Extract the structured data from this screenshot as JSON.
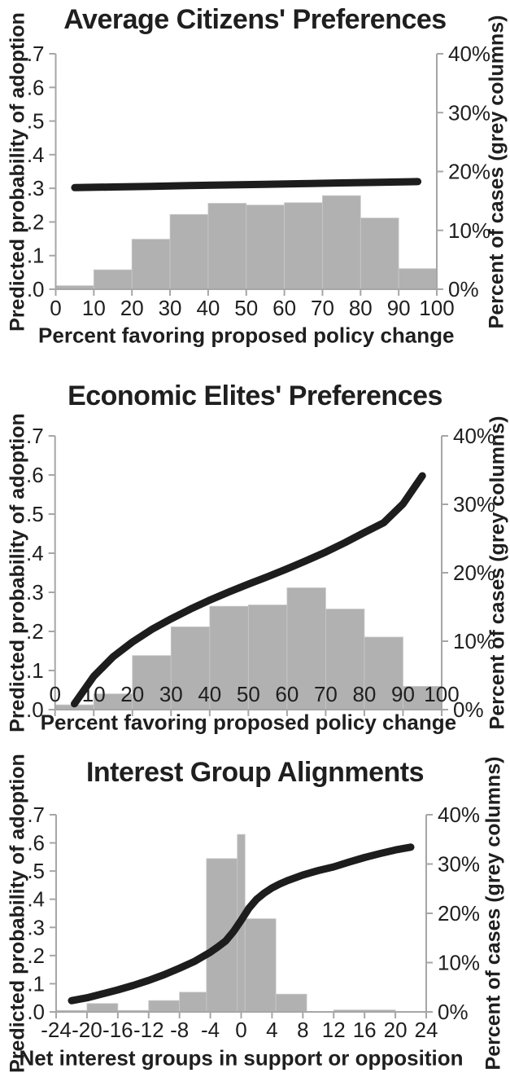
{
  "colors": {
    "bar_fill": "#b1b1b1",
    "bar_edge": "#c9c9c9",
    "line": "#1d1d1d",
    "axis": "#a6a6a6",
    "text": "#1f1f1f",
    "background": "#ffffff"
  },
  "chart_data": [
    {
      "type": "bar+line",
      "title": "Average Citizens' Preferences",
      "x_label": "Percent favoring proposed policy change",
      "y_left_label": "Predicted probability of adoption",
      "y_right_label": "Percent of cases (grey columns)",
      "x_range": [
        0,
        100
      ],
      "y_left_range": [
        0,
        0.7
      ],
      "y_right_range": [
        0,
        40
      ],
      "grid": false,
      "legend": false,
      "x_ticks": [
        {
          "v": 0,
          "label": "0"
        },
        {
          "v": 10,
          "label": "10"
        },
        {
          "v": 20,
          "label": "20"
        },
        {
          "v": 30,
          "label": "30"
        },
        {
          "v": 40,
          "label": "40"
        },
        {
          "v": 50,
          "label": "50"
        },
        {
          "v": 60,
          "label": "60"
        },
        {
          "v": 70,
          "label": "70"
        },
        {
          "v": 80,
          "label": "80"
        },
        {
          "v": 90,
          "label": "90"
        },
        {
          "v": 100,
          "label": "100"
        }
      ],
      "y_left_ticks": [
        {
          "v": 0.0,
          "label": ".0"
        },
        {
          "v": 0.1,
          "label": ".1"
        },
        {
          "v": 0.2,
          "label": ".2"
        },
        {
          "v": 0.3,
          "label": ".3"
        },
        {
          "v": 0.4,
          "label": ".4"
        },
        {
          "v": 0.5,
          "label": ".5"
        },
        {
          "v": 0.6,
          "label": ".6"
        },
        {
          "v": 0.7,
          "label": ".7"
        }
      ],
      "y_right_ticks": [
        {
          "v": 0,
          "label": "0%"
        },
        {
          "v": 10,
          "label": "10%"
        },
        {
          "v": 20,
          "label": "20%"
        },
        {
          "v": 30,
          "label": "30%"
        },
        {
          "v": 40,
          "label": "40%"
        }
      ],
      "bars_unit": "percent_of_cases_right_axis",
      "bars": [
        {
          "from": 0,
          "to": 10,
          "value": 0.6
        },
        {
          "from": 10,
          "to": 20,
          "value": 3.3
        },
        {
          "from": 20,
          "to": 30,
          "value": 8.5
        },
        {
          "from": 30,
          "to": 40,
          "value": 12.7
        },
        {
          "from": 40,
          "to": 50,
          "value": 14.6
        },
        {
          "from": 50,
          "to": 60,
          "value": 14.3
        },
        {
          "from": 60,
          "to": 70,
          "value": 14.7
        },
        {
          "from": 70,
          "to": 80,
          "value": 15.9
        },
        {
          "from": 80,
          "to": 90,
          "value": 12.1
        },
        {
          "from": 90,
          "to": 100,
          "value": 3.5
        }
      ],
      "line_unit": "predicted_probability_left_axis",
      "line": [
        [
          5,
          0.302
        ],
        [
          15,
          0.304
        ],
        [
          25,
          0.306
        ],
        [
          35,
          0.308
        ],
        [
          45,
          0.31
        ],
        [
          55,
          0.312
        ],
        [
          65,
          0.314
        ],
        [
          75,
          0.316
        ],
        [
          85,
          0.318
        ],
        [
          95,
          0.32
        ]
      ]
    },
    {
      "type": "bar+line",
      "title": "Economic Elites' Preferences",
      "x_label": "Percent favoring proposed policy change",
      "y_left_label": "Predicted probability of adoption",
      "y_right_label": "Percent of cases (grey columns)",
      "x_range": [
        0,
        100
      ],
      "y_left_range": [
        0,
        0.7
      ],
      "y_right_range": [
        0,
        40
      ],
      "grid": false,
      "legend": false,
      "x_ticks": [
        {
          "v": 0,
          "label": "0"
        },
        {
          "v": 10,
          "label": "10"
        },
        {
          "v": 20,
          "label": "20"
        },
        {
          "v": 30,
          "label": "30"
        },
        {
          "v": 40,
          "label": "40"
        },
        {
          "v": 50,
          "label": "50"
        },
        {
          "v": 60,
          "label": "60"
        },
        {
          "v": 70,
          "label": "70"
        },
        {
          "v": 80,
          "label": "80"
        },
        {
          "v": 90,
          "label": "90"
        },
        {
          "v": 100,
          "label": "100"
        }
      ],
      "y_left_ticks": [
        {
          "v": 0.0,
          "label": ".0"
        },
        {
          "v": 0.1,
          "label": ".1"
        },
        {
          "v": 0.2,
          "label": ".2"
        },
        {
          "v": 0.3,
          "label": ".3"
        },
        {
          "v": 0.4,
          "label": ".4"
        },
        {
          "v": 0.5,
          "label": ".5"
        },
        {
          "v": 0.6,
          "label": ".6"
        },
        {
          "v": 0.7,
          "label": ".7"
        }
      ],
      "y_right_ticks": [
        {
          "v": 0,
          "label": "0%"
        },
        {
          "v": 10,
          "label": "10%"
        },
        {
          "v": 20,
          "label": "20%"
        },
        {
          "v": 30,
          "label": "30%"
        },
        {
          "v": 40,
          "label": "40%"
        }
      ],
      "bars_unit": "percent_of_cases_right_axis",
      "bars": [
        {
          "from": 0,
          "to": 10,
          "value": 0.7
        },
        {
          "from": 10,
          "to": 20,
          "value": 2.3
        },
        {
          "from": 20,
          "to": 30,
          "value": 7.9
        },
        {
          "from": 30,
          "to": 40,
          "value": 12.1
        },
        {
          "from": 40,
          "to": 50,
          "value": 15.1
        },
        {
          "from": 50,
          "to": 60,
          "value": 15.3
        },
        {
          "from": 60,
          "to": 70,
          "value": 17.8
        },
        {
          "from": 70,
          "to": 80,
          "value": 14.7
        },
        {
          "from": 80,
          "to": 90,
          "value": 10.6
        },
        {
          "from": 90,
          "to": 100,
          "value": 3.4
        }
      ],
      "line_unit": "predicted_probability_left_axis",
      "line": [
        [
          5,
          0.015
        ],
        [
          10,
          0.085
        ],
        [
          15,
          0.135
        ],
        [
          20,
          0.173
        ],
        [
          25,
          0.205
        ],
        [
          30,
          0.232
        ],
        [
          35,
          0.257
        ],
        [
          40,
          0.28
        ],
        [
          45,
          0.301
        ],
        [
          50,
          0.321
        ],
        [
          55,
          0.34
        ],
        [
          60,
          0.36
        ],
        [
          65,
          0.381
        ],
        [
          70,
          0.403
        ],
        [
          75,
          0.427
        ],
        [
          80,
          0.453
        ],
        [
          85,
          0.478
        ],
        [
          90,
          0.526
        ],
        [
          95,
          0.598
        ]
      ]
    },
    {
      "type": "bar+line",
      "title": "Interest Group Alignments",
      "x_label": "Net interest groups in support or opposition",
      "y_left_label": "Predicted probability of adoption",
      "y_right_label": "Percent of cases (grey columns)",
      "x_range": [
        -24,
        24
      ],
      "y_left_range": [
        0,
        0.7
      ],
      "y_right_range": [
        0,
        40
      ],
      "grid": false,
      "legend": false,
      "x_ticks": [
        {
          "v": -24,
          "label": "-24"
        },
        {
          "v": -20,
          "label": "-20"
        },
        {
          "v": -16,
          "label": "-16"
        },
        {
          "v": -12,
          "label": "-12"
        },
        {
          "v": -8,
          "label": "-8"
        },
        {
          "v": -4,
          "label": "-4"
        },
        {
          "v": 0,
          "label": "0"
        },
        {
          "v": 4,
          "label": "4"
        },
        {
          "v": 8,
          "label": "8"
        },
        {
          "v": 12,
          "label": "12"
        },
        {
          "v": 16,
          "label": "16"
        },
        {
          "v": 20,
          "label": "20"
        },
        {
          "v": 24,
          "label": "24"
        }
      ],
      "y_left_ticks": [
        {
          "v": 0.0,
          "label": ".0"
        },
        {
          "v": 0.1,
          "label": ".1"
        },
        {
          "v": 0.2,
          "label": ".2"
        },
        {
          "v": 0.3,
          "label": ".3"
        },
        {
          "v": 0.4,
          "label": ".4"
        },
        {
          "v": 0.5,
          "label": ".5"
        },
        {
          "v": 0.6,
          "label": ".6"
        },
        {
          "v": 0.7,
          "label": ".7"
        }
      ],
      "y_right_ticks": [
        {
          "v": 0,
          "label": "0%"
        },
        {
          "v": 10,
          "label": "10%"
        },
        {
          "v": 20,
          "label": "20%"
        },
        {
          "v": 30,
          "label": "30%"
        },
        {
          "v": 40,
          "label": "40%"
        }
      ],
      "bars_unit": "percent_of_cases_right_axis",
      "bars": [
        {
          "from": -24,
          "to": -20,
          "value": 0.3
        },
        {
          "from": -20,
          "to": -16,
          "value": 1.7
        },
        {
          "from": -16,
          "to": -12,
          "value": 0.3
        },
        {
          "from": -12,
          "to": -8,
          "value": 2.3
        },
        {
          "from": -8,
          "to": -4.5,
          "value": 4.0
        },
        {
          "from": -4.5,
          "to": -0.5,
          "value": 31.1
        },
        {
          "from": -0.5,
          "to": 0.5,
          "value": 36.0
        },
        {
          "from": 0.5,
          "to": 4.5,
          "value": 18.9
        },
        {
          "from": 4.5,
          "to": 8.5,
          "value": 3.6
        },
        {
          "from": 12,
          "to": 20,
          "value": 0.4
        }
      ],
      "line_unit": "predicted_probability_left_axis",
      "line": [
        [
          -22,
          0.04
        ],
        [
          -20,
          0.05
        ],
        [
          -18,
          0.064
        ],
        [
          -16,
          0.078
        ],
        [
          -14,
          0.094
        ],
        [
          -12,
          0.112
        ],
        [
          -10,
          0.132
        ],
        [
          -8,
          0.155
        ],
        [
          -6,
          0.18
        ],
        [
          -4,
          0.212
        ],
        [
          -3,
          0.231
        ],
        [
          -2,
          0.252
        ],
        [
          -1,
          0.285
        ],
        [
          0,
          0.325
        ],
        [
          1,
          0.368
        ],
        [
          2,
          0.4
        ],
        [
          3,
          0.422
        ],
        [
          4,
          0.44
        ],
        [
          5,
          0.454
        ],
        [
          6,
          0.466
        ],
        [
          8,
          0.486
        ],
        [
          10,
          0.502
        ],
        [
          12,
          0.515
        ],
        [
          14,
          0.532
        ],
        [
          16,
          0.548
        ],
        [
          18,
          0.562
        ],
        [
          20,
          0.575
        ],
        [
          22,
          0.585
        ]
      ]
    }
  ]
}
